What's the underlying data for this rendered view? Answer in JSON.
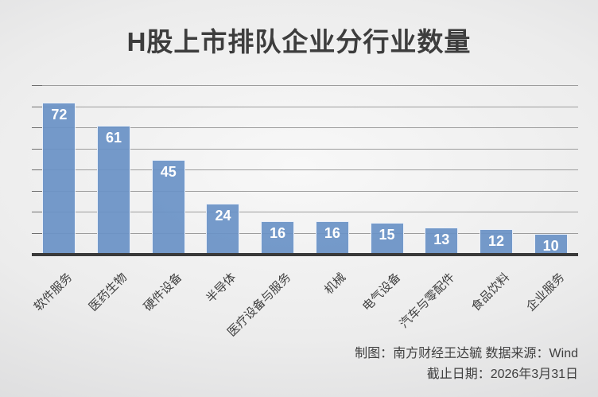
{
  "title": "H股上市排队企业分行业数量",
  "chart_data": {
    "type": "bar",
    "title": "H股上市排队企业分行业数量",
    "categories": [
      "软件服务",
      "医药生物",
      "硬件设备",
      "半导体",
      "医疗设备与服务",
      "机械",
      "电气设备",
      "汽车与零配件",
      "食品饮料",
      "企业服务"
    ],
    "values": [
      72,
      61,
      45,
      24,
      16,
      16,
      15,
      13,
      12,
      10
    ],
    "xlabel": "",
    "ylabel": "",
    "ylim": [
      0,
      80
    ],
    "gridline_step": 10,
    "grid": true,
    "legend": "none",
    "bar_color": "#6a92c6",
    "data_label_color": "#ffffff",
    "gridline_color": "#9d9d9d",
    "axis_line_color": "#3a3a3a"
  },
  "footer": {
    "line1": "制图：南方财经王达毓 数据来源：Wind",
    "line2": "截止日期：2026年3月31日"
  }
}
